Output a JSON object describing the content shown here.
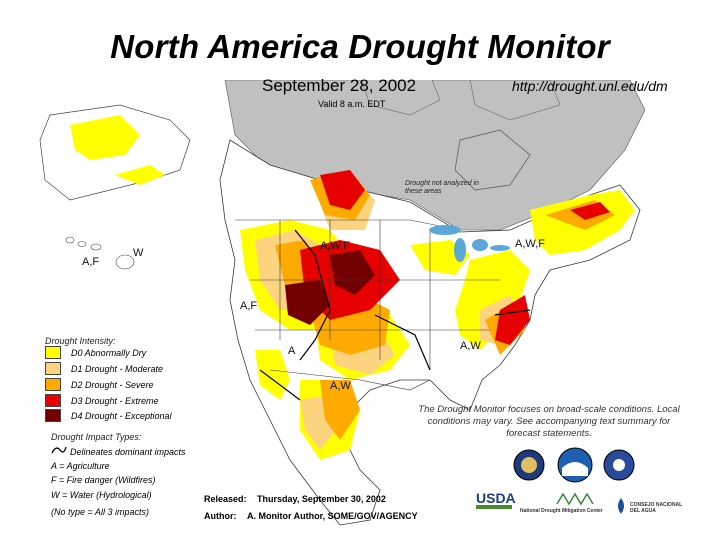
{
  "header": {
    "title": "North America Drought Monitor",
    "date": "September 28, 2002",
    "url": "http://drought.unl.edu/dm",
    "valid": "Valid 8 a.m. EDT"
  },
  "map": {
    "annotation_unanalyzed": "Drought not analyzed in these areas",
    "impact_labels": [
      {
        "id": "af-hawaii",
        "text": "A,F"
      },
      {
        "id": "w-hawaii",
        "text": "W"
      },
      {
        "id": "awf-plains",
        "text": "A,W,F"
      },
      {
        "id": "awf-northeast",
        "text": "A,W,F"
      },
      {
        "id": "af-west",
        "text": "A,F"
      },
      {
        "id": "a-southwest",
        "text": "A"
      },
      {
        "id": "aw-southeast",
        "text": "A,W"
      },
      {
        "id": "aw-mexico",
        "text": "A,W"
      }
    ],
    "colors": {
      "d0": "#ffff00",
      "d1": "#fcd37f",
      "d2": "#ffaa00",
      "d3": "#e60000",
      "d4": "#730000",
      "unanalyzed": "#c0c0c0",
      "land": "#ffffff",
      "border": "#3a3a3a",
      "water": "#5aa7d8"
    }
  },
  "legend": {
    "intensity_title": "Drought Intensity:",
    "intensity": [
      {
        "label": "D0 Abnormally Dry",
        "color": "#ffff00"
      },
      {
        "label": "D1 Drought - Moderate",
        "color": "#fcd37f"
      },
      {
        "label": "D2 Drought - Severe",
        "color": "#ffaa00"
      },
      {
        "label": "D3 Drought - Extreme",
        "color": "#e60000"
      },
      {
        "label": "D4 Drought - Exceptional",
        "color": "#730000"
      }
    ],
    "impact_title": "Drought Impact Types:",
    "impact_items": [
      "Delineates dominant impacts",
      "A = Agriculture",
      "F = Fire danger (Wildfires)",
      "W = Water (Hydrological)",
      "(No type = All 3 impacts)"
    ]
  },
  "note": "The Drought Monitor focuses on broad-scale conditions. Local conditions may vary. See accompanying text summary for forecast statements.",
  "footer": {
    "released_label": "Released:",
    "released_value": "Thursday, September 30, 2002",
    "author_label": "Author:",
    "author_value": "A. Monitor Author, SOME/GOV/AGENCY"
  },
  "logos": {
    "usda": "USDA",
    "ndmc": "National Drought Mitigation Center",
    "noaa_line1": "CONSEJO NACIONAL",
    "noaa_line2": "DEL AGUA"
  }
}
